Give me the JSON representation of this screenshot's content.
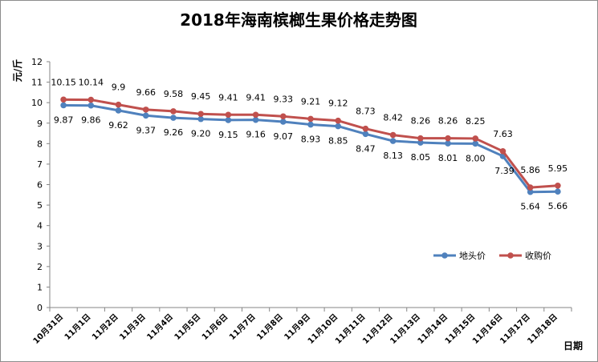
{
  "chart_data": {
    "type": "line",
    "title": "2018年海南槟榔生果价格走势图",
    "ylabel": "元/斤",
    "xlabel": "日期",
    "ylim": [
      0,
      12
    ],
    "yticks": [
      0,
      1,
      2,
      3,
      4,
      5,
      6,
      7,
      8,
      9,
      10,
      11,
      12
    ],
    "categories": [
      "10月31日",
      "11月1日",
      "11月2日",
      "11月3日",
      "11月4日",
      "11月5日",
      "11月6日",
      "11月7日",
      "11月8日",
      "11月9日",
      "11月10日",
      "11月11日",
      "11月12日",
      "11月13日",
      "11月14日",
      "11月15日",
      "11月16日",
      "11月17日",
      "11月18日"
    ],
    "series": [
      {
        "name": "地头价",
        "color": "#4f81bd",
        "values": [
          9.87,
          9.86,
          9.62,
          9.37,
          9.26,
          9.2,
          9.15,
          9.16,
          9.07,
          8.93,
          8.85,
          8.47,
          8.13,
          8.05,
          8.01,
          8.0,
          7.39,
          5.64,
          5.66
        ],
        "labels": [
          "9.87",
          "9.86",
          "9.62",
          "9.37",
          "9.26",
          "9.20",
          "9.15",
          "9.16",
          "9.07",
          "8.93",
          "8.85",
          "8.47",
          "8.13",
          "8.05",
          "8.01",
          "8.00",
          "7.39",
          "5.64",
          "5.66"
        ]
      },
      {
        "name": "收购价",
        "color": "#c0504d",
        "values": [
          10.15,
          10.14,
          9.9,
          9.66,
          9.58,
          9.45,
          9.41,
          9.41,
          9.33,
          9.21,
          9.12,
          8.73,
          8.42,
          8.26,
          8.26,
          8.25,
          7.63,
          5.86,
          5.95
        ],
        "labels": [
          "10.15",
          "10.14",
          "9.9",
          "9.66",
          "9.58",
          "9.45",
          "9.41",
          "9.41",
          "9.33",
          "9.21",
          "9.12",
          "8.73",
          "8.42",
          "8.26",
          "8.26",
          "8.25",
          "7.63",
          "5.86",
          "5.95"
        ]
      }
    ],
    "grid": false,
    "legend": "right"
  }
}
